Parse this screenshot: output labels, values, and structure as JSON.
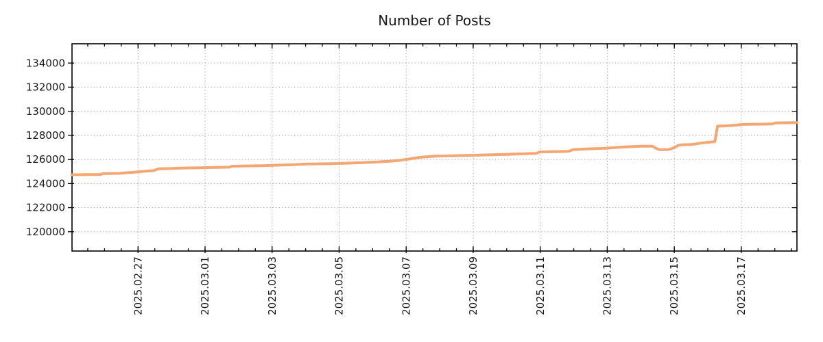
{
  "chart_data": {
    "type": "line",
    "title": "Number of Posts",
    "background": "#FFFFFF",
    "grid": {
      "visible": true,
      "color": "#A8A8A8",
      "style": "dotted",
      "on": "major-ticks-both-axes"
    },
    "x_axis": {
      "kind": "date",
      "left_edge_date": "2025-02-25 00:00",
      "right_edge_date": "2025-03-18 15:00",
      "domain_days": [
        0,
        21.63
      ],
      "major_ticks": [
        {
          "day": 1.97,
          "label": "2025.02.27"
        },
        {
          "day": 3.97,
          "label": "2025.03.01"
        },
        {
          "day": 5.97,
          "label": "2025.03.03"
        },
        {
          "day": 7.97,
          "label": "2025.03.05"
        },
        {
          "day": 9.97,
          "label": "2025.03.07"
        },
        {
          "day": 11.97,
          "label": "2025.03.09"
        },
        {
          "day": 13.97,
          "label": "2025.03.11"
        },
        {
          "day": 15.97,
          "label": "2025.03.13"
        },
        {
          "day": 17.97,
          "label": "2025.03.15"
        },
        {
          "day": 19.97,
          "label": "2025.03.17"
        }
      ],
      "minor_tick_start_day": 0.47,
      "minor_tick_step_days": 0.5
    },
    "y_axis": {
      "range": [
        118400,
        135600
      ],
      "ticks": [
        120000,
        122000,
        124000,
        126000,
        128000,
        130000,
        132000,
        134000
      ]
    },
    "series": [
      {
        "name": "Number of Posts",
        "color": "#F4A673",
        "points_day_value": [
          [
            0.0,
            124730
          ],
          [
            0.45,
            124740
          ],
          [
            0.85,
            124750
          ],
          [
            0.92,
            124820
          ],
          [
            1.4,
            124845
          ],
          [
            1.58,
            124885
          ],
          [
            1.8,
            124930
          ],
          [
            1.97,
            124970
          ],
          [
            2.2,
            125030
          ],
          [
            2.45,
            125080
          ],
          [
            2.53,
            125180
          ],
          [
            2.6,
            125230
          ],
          [
            3.0,
            125260
          ],
          [
            3.4,
            125290
          ],
          [
            3.97,
            125320
          ],
          [
            4.3,
            125340
          ],
          [
            4.7,
            125360
          ],
          [
            4.78,
            125440
          ],
          [
            5.3,
            125465
          ],
          [
            5.8,
            125490
          ],
          [
            5.97,
            125510
          ],
          [
            6.3,
            125540
          ],
          [
            6.6,
            125570
          ],
          [
            6.78,
            125600
          ],
          [
            7.05,
            125625
          ],
          [
            7.6,
            125645
          ],
          [
            7.97,
            125665
          ],
          [
            8.4,
            125705
          ],
          [
            8.7,
            125735
          ],
          [
            9.1,
            125790
          ],
          [
            9.5,
            125860
          ],
          [
            9.8,
            125940
          ],
          [
            9.97,
            126000
          ],
          [
            10.2,
            126100
          ],
          [
            10.4,
            126180
          ],
          [
            10.85,
            126280
          ],
          [
            11.3,
            126305
          ],
          [
            11.97,
            126350
          ],
          [
            12.5,
            126390
          ],
          [
            12.95,
            126420
          ],
          [
            13.4,
            126465
          ],
          [
            13.85,
            126500
          ],
          [
            13.95,
            126620
          ],
          [
            14.4,
            126650
          ],
          [
            14.82,
            126675
          ],
          [
            14.95,
            126810
          ],
          [
            15.4,
            126880
          ],
          [
            15.97,
            126940
          ],
          [
            16.4,
            127030
          ],
          [
            16.8,
            127080
          ],
          [
            17.0,
            127095
          ],
          [
            17.32,
            127095
          ],
          [
            17.42,
            126940
          ],
          [
            17.52,
            126820
          ],
          [
            17.78,
            126810
          ],
          [
            17.88,
            126890
          ],
          [
            17.98,
            126990
          ],
          [
            18.08,
            127160
          ],
          [
            18.2,
            127220
          ],
          [
            18.5,
            127245
          ],
          [
            18.75,
            127350
          ],
          [
            19.0,
            127430
          ],
          [
            19.14,
            127460
          ],
          [
            19.18,
            127485
          ],
          [
            19.26,
            128760
          ],
          [
            19.5,
            128790
          ],
          [
            19.85,
            128860
          ],
          [
            19.99,
            128900
          ],
          [
            20.15,
            128920
          ],
          [
            20.6,
            128930
          ],
          [
            20.9,
            128945
          ],
          [
            20.98,
            129030
          ],
          [
            21.3,
            129045
          ],
          [
            21.63,
            129060
          ]
        ]
      }
    ]
  }
}
